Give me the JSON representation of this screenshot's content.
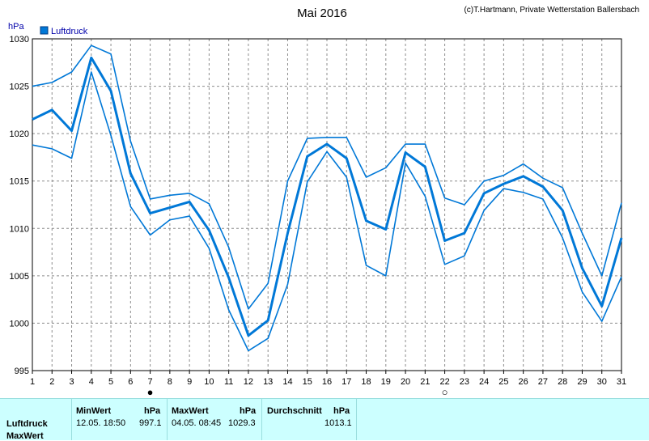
{
  "header": {
    "title": "Mai 2016",
    "credit": "(c)T.Hartmann, Private Wetterstation Ballersbach"
  },
  "legend": {
    "label": "Luftdruck",
    "color": "#0078d7"
  },
  "markers": [
    {
      "day": 7,
      "symbol": "●"
    },
    {
      "day": 22,
      "symbol": "○"
    }
  ],
  "chart_data": {
    "type": "line",
    "ylabel": "hPa",
    "ylim": [
      995,
      1030
    ],
    "yticks": [
      995,
      1000,
      1005,
      1010,
      1015,
      1020,
      1025,
      1030
    ],
    "xlim": [
      1,
      31
    ],
    "x": [
      1,
      2,
      3,
      4,
      5,
      6,
      7,
      8,
      9,
      10,
      11,
      12,
      13,
      14,
      15,
      16,
      17,
      18,
      19,
      20,
      21,
      22,
      23,
      24,
      25,
      26,
      27,
      28,
      29,
      30,
      31
    ],
    "grid": true,
    "series": [
      {
        "name": "Luftdruck",
        "color": "#0078d7",
        "values": [
          1021.5,
          1022.5,
          1020.3,
          1028.0,
          1024.5,
          1015.8,
          1011.6,
          1012.2,
          1012.8,
          1009.8,
          1004.8,
          998.7,
          1000.3,
          1009.5,
          1017.6,
          1018.9,
          1017.4,
          1010.8,
          1009.9,
          1018.0,
          1016.5,
          1008.7,
          1009.5,
          1013.7,
          1014.7,
          1015.5,
          1014.4,
          1011.9,
          1005.8,
          1001.8,
          1009.0
        ]
      },
      {
        "color": "#0078d7",
        "values": [
          1025.0,
          1025.4,
          1026.5,
          1029.3,
          1028.4,
          1019.2,
          1013.1,
          1013.5,
          1013.7,
          1012.6,
          1008.0,
          1001.5,
          1004.2,
          1015.0,
          1019.5,
          1019.6,
          1019.6,
          1015.4,
          1016.4,
          1018.9,
          1018.9,
          1013.2,
          1012.5,
          1015.0,
          1015.6,
          1016.8,
          1015.3,
          1014.3,
          1009.5,
          1005.0,
          1012.7
        ]
      },
      {
        "color": "#0078d7",
        "values": [
          1018.8,
          1018.4,
          1017.4,
          1026.5,
          1019.8,
          1012.3,
          1009.3,
          1010.9,
          1011.3,
          1007.9,
          1001.4,
          997.1,
          998.4,
          1004.1,
          1014.9,
          1018.1,
          1015.4,
          1006.1,
          1005.0,
          1016.9,
          1013.4,
          1006.2,
          1007.1,
          1011.9,
          1014.2,
          1013.8,
          1013.1,
          1009.0,
          1003.3,
          1000.2,
          1004.9
        ]
      }
    ]
  },
  "stats": {
    "row_label": "Luftdruck",
    "row2_label": "MaxWert",
    "min_header": "MinWert",
    "min_unit": "hPa",
    "min_time": "12.05.  18:50",
    "min_value": "997.1",
    "max_header": "MaxWert",
    "max_unit": "hPa",
    "max_time": "04.05.  08:45",
    "max_value": "1029.3",
    "avg_header": "Durchschnitt",
    "avg_unit": "hPa",
    "avg_value": "1013.1"
  }
}
